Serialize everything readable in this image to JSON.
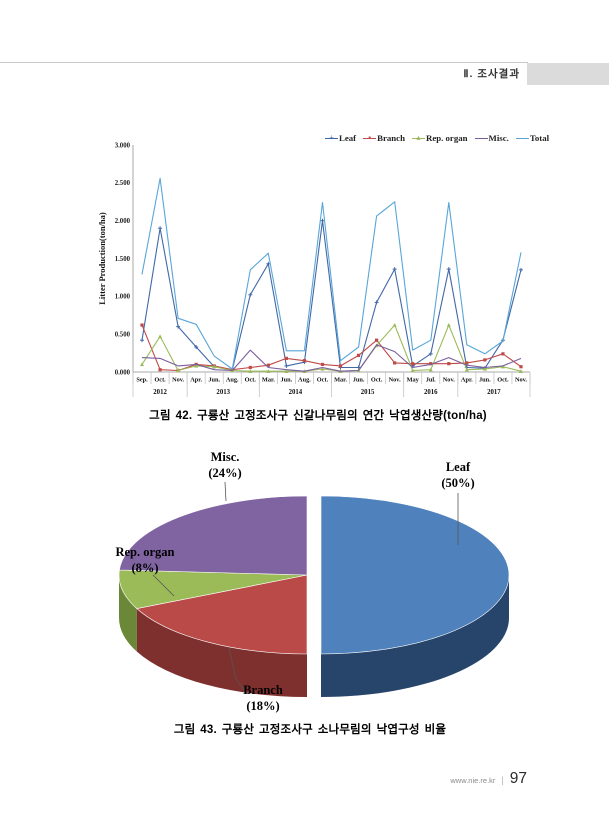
{
  "page": {
    "header": {
      "section_label": "Ⅱ. 조사결과"
    },
    "captions": {
      "fig42": "그림 42. 구룡산 고정조사구 신갈나무림의 연간 낙엽생산량(ton/ha)",
      "fig43": "그림 43. 구룡산 고정조사구 소나무림의 낙엽구성 비율"
    },
    "footer": {
      "site": "www.nie.re.kr",
      "separator": "|",
      "page_number": "97"
    }
  },
  "chart_data": [
    {
      "type": "line",
      "title": "",
      "xlabel": "",
      "ylabel": "Litter Production(ton/ha)",
      "ylim": [
        0,
        3
      ],
      "yticks": [
        "0.000",
        "0.500",
        "1.000",
        "1.500",
        "2.000",
        "2.500",
        "3.000"
      ],
      "grid": false,
      "legend_position": "top-right",
      "categories": [
        "Sep.",
        "Oct.",
        "Nov.",
        "Apr.",
        "Jun.",
        "Aug.",
        "Oct.",
        "Mar.",
        "Jun.",
        "Aug.",
        "Oct.",
        "Mar.",
        "Jun.",
        "Oct.",
        "Nov.",
        "May",
        "Jul.",
        "Nov.",
        "Apr.",
        "Jun.",
        "Oct.",
        "Nov."
      ],
      "year_groups": [
        {
          "year": "2012",
          "count": 3
        },
        {
          "year": "2013",
          "count": 4
        },
        {
          "year": "2014",
          "count": 4
        },
        {
          "year": "2015",
          "count": 4
        },
        {
          "year": "2016",
          "count": 3
        },
        {
          "year": "2017",
          "count": 4
        }
      ],
      "series": [
        {
          "name": "Leaf",
          "color": "#4068a8",
          "marker": "plus",
          "values": [
            0.42,
            1.9,
            0.6,
            0.33,
            0.07,
            0.03,
            1.02,
            1.43,
            0.08,
            0.13,
            2.0,
            0.06,
            0.06,
            0.92,
            1.36,
            0.08,
            0.24,
            1.36,
            0.06,
            0.05,
            0.42,
            1.35
          ]
        },
        {
          "name": "Branch",
          "color": "#bf4a47",
          "marker": "square",
          "values": [
            0.62,
            0.03,
            0.02,
            0.1,
            0.08,
            0.03,
            0.06,
            0.09,
            0.18,
            0.15,
            0.1,
            0.08,
            0.22,
            0.42,
            0.12,
            0.11,
            0.11,
            0.11,
            0.12,
            0.16,
            0.24,
            0.07
          ]
        },
        {
          "name": "Rep. organ",
          "color": "#9bbb59",
          "marker": "triangle",
          "values": [
            0.1,
            0.47,
            0.02,
            0.08,
            0.07,
            0.02,
            0.01,
            0.01,
            0.01,
            0.01,
            0.04,
            0.01,
            0.02,
            0.35,
            0.62,
            0.02,
            0.03,
            0.62,
            0.03,
            0.04,
            0.07,
            0.01
          ]
        },
        {
          "name": "Misc.",
          "color": "#7a5e9e",
          "marker": "none",
          "values": [
            0.19,
            0.18,
            0.08,
            0.1,
            0.03,
            0.02,
            0.29,
            0.06,
            0.03,
            0.01,
            0.06,
            0.01,
            0.02,
            0.36,
            0.27,
            0.06,
            0.1,
            0.19,
            0.09,
            0.06,
            0.08,
            0.18
          ]
        },
        {
          "name": "Total",
          "color": "#58a6d8",
          "marker": "none",
          "values": [
            1.29,
            2.56,
            0.71,
            0.63,
            0.21,
            0.04,
            1.35,
            1.57,
            0.28,
            0.28,
            2.24,
            0.15,
            0.33,
            2.06,
            2.25,
            0.29,
            0.42,
            2.24,
            0.36,
            0.24,
            0.41,
            1.58
          ]
        }
      ]
    },
    {
      "type": "pie",
      "style": "3d-exploded",
      "exploded_slice": "Leaf",
      "clockwise": true,
      "start_angle_deg": 0,
      "slices": [
        {
          "label": "Leaf",
          "pct": 50,
          "pct_label": "(50%)",
          "color": "#4f81bd",
          "side_color": "#27456b"
        },
        {
          "label": "Branch",
          "pct": 18,
          "pct_label": "(18%)",
          "color": "#b94a48",
          "side_color": "#7e302f"
        },
        {
          "label": "Rep. organ",
          "pct": 8,
          "pct_label": "(8%)",
          "color": "#9bbb59",
          "side_color": "#6b8838"
        },
        {
          "label": "Misc.",
          "pct": 24,
          "pct_label": "(24%)",
          "color": "#8064a2",
          "side_color": "#5a4379"
        }
      ]
    }
  ]
}
